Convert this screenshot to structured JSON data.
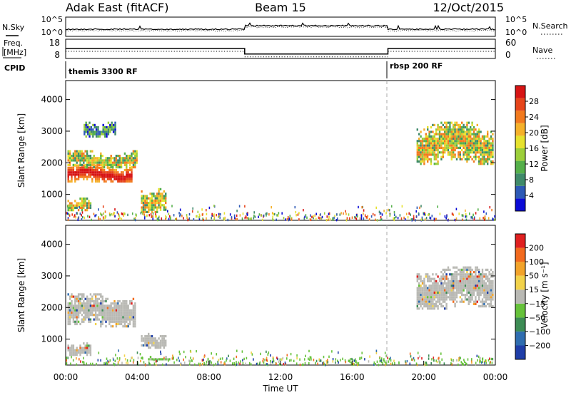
{
  "header": {
    "station": "Adak East (fitACF)",
    "beam": "Beam 15",
    "date": "12/Oct/2015"
  },
  "nsky_panel": {
    "left_label": "N.Sky",
    "right_label": "N.Search",
    "left_ticks": [
      "10^5",
      "10^0"
    ],
    "right_ticks": [
      "10^5",
      "10^0"
    ]
  },
  "freq_panel": {
    "left_label_1": "Freq.",
    "left_label_2": "[MHz]",
    "right_label": "Nave",
    "left_ticks": [
      "18",
      "8"
    ],
    "right_ticks": [
      "60",
      "0"
    ],
    "cpid_label": "CPID",
    "modes": [
      {
        "name": "themis 3300 RF",
        "start_h": 0
      },
      {
        "name": "rbsp 200 RF",
        "start_h": 18
      }
    ],
    "freq_segments": [
      {
        "start_h": 0,
        "end_h": 10,
        "value": 13.5
      },
      {
        "start_h": 10,
        "end_h": 18,
        "value": 9.6
      },
      {
        "start_h": 18,
        "end_h": 24,
        "value": 13.5
      }
    ]
  },
  "chart_data": [
    {
      "type": "heatmap",
      "name": "power",
      "ylabel": "Slant Range [km]",
      "yticks": [
        1000,
        2000,
        3000,
        4000
      ],
      "ylim": [
        180,
        4600
      ],
      "xlim": [
        0,
        24
      ],
      "colorbar": {
        "label": "Power [dB]",
        "ticks": [
          "28",
          "24",
          "20",
          "16",
          "12",
          "8",
          "4"
        ],
        "colors": [
          "#0b0bd6",
          "#2d59b6",
          "#3f8a6a",
          "#55b04a",
          "#9ccf3a",
          "#e6e22e",
          "#f5b12a",
          "#f27a1e",
          "#e6441a",
          "#d71414"
        ]
      },
      "regions": [
        {
          "t0": 0.1,
          "t1": 3.7,
          "r0": 1350,
          "r1": 1950,
          "level": "high"
        },
        {
          "t0": 0.1,
          "t1": 4.0,
          "r0": 1800,
          "r1": 2400,
          "level": "mid"
        },
        {
          "t0": 1.0,
          "t1": 2.8,
          "r0": 2800,
          "r1": 3300,
          "level": "low"
        },
        {
          "t0": 4.2,
          "t1": 5.6,
          "r0": 400,
          "r1": 1200,
          "level": "mid"
        },
        {
          "t0": 0.1,
          "t1": 1.4,
          "r0": 500,
          "r1": 900,
          "level": "mid"
        },
        {
          "t0": 19.6,
          "t1": 23.9,
          "r0": 1900,
          "r1": 3300,
          "level": "mid"
        }
      ]
    },
    {
      "type": "heatmap",
      "name": "velocity",
      "ylabel": "Slant Range [km]",
      "yticks": [
        1000,
        2000,
        3000,
        4000
      ],
      "ylim": [
        180,
        4600
      ],
      "xlim": [
        0,
        24
      ],
      "xticks": [
        "00:00",
        "04:00",
        "08:00",
        "12:00",
        "16:00",
        "20:00",
        "00:00"
      ],
      "xlabel": "Time UT",
      "colorbar": {
        "label": "Velocity [m s⁻¹]",
        "ticks": [
          "200",
          "100",
          "50",
          "15",
          "−15",
          "−50",
          "−100",
          "−200"
        ],
        "colors": [
          "#1f3ea8",
          "#2f6db0",
          "#3d8c55",
          "#66c23a",
          "#b9b9b4",
          "#f2d24a",
          "#f2a32a",
          "#f26a1e",
          "#e02020"
        ]
      },
      "regions": [
        {
          "t0": 0.1,
          "t1": 3.9,
          "r0": 1350,
          "r1": 2450,
          "level": "gray"
        },
        {
          "t0": 4.2,
          "t1": 5.6,
          "r0": 700,
          "r1": 1200,
          "level": "gray"
        },
        {
          "t0": 4.6,
          "t1": 5.8,
          "r0": 330,
          "r1": 470,
          "level": "green"
        },
        {
          "t0": 0.1,
          "t1": 1.4,
          "r0": 500,
          "r1": 900,
          "level": "gray"
        },
        {
          "t0": 19.6,
          "t1": 23.9,
          "r0": 1900,
          "r1": 3300,
          "level": "gray"
        }
      ]
    }
  ]
}
